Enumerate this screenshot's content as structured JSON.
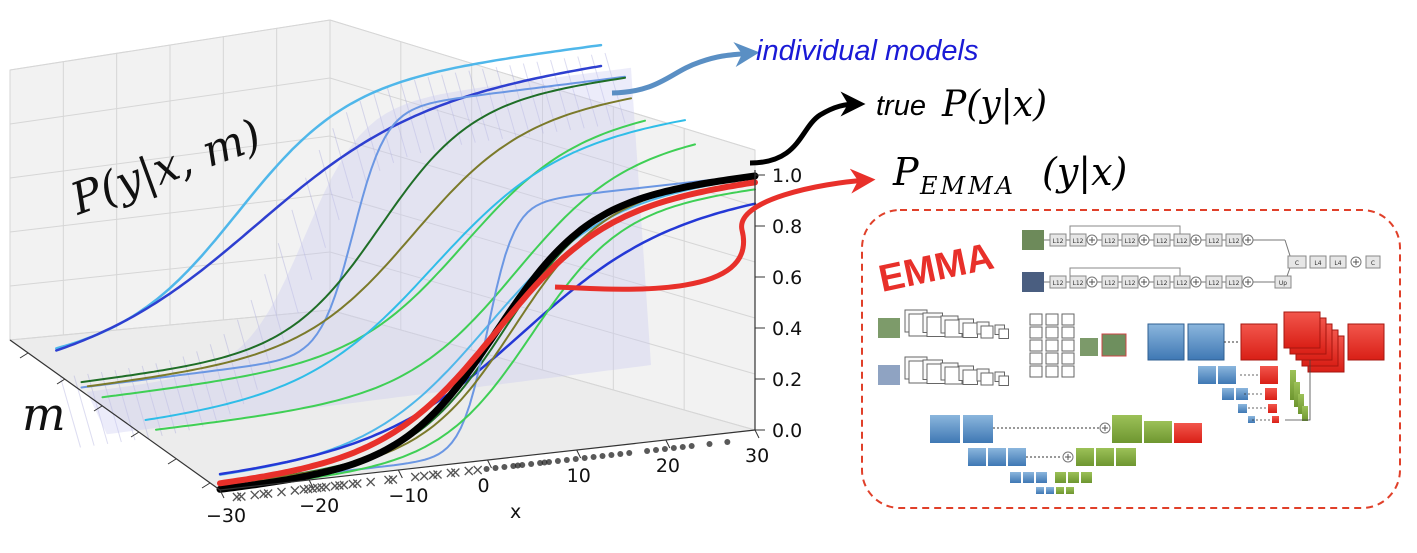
{
  "plot": {
    "z_label": "P(y|x, m)",
    "m_label": "m",
    "x_label": "x",
    "x_ticks": [
      "−30",
      "−20",
      "−10",
      "0",
      "10",
      "20",
      "30"
    ],
    "z_ticks": [
      "0.0",
      "0.2",
      "0.4",
      "0.6",
      "0.8",
      "1.0"
    ],
    "x_range": [
      -30,
      30
    ],
    "z_range": [
      0,
      1
    ],
    "grid": true
  },
  "annotations": {
    "individual_models": "individual models",
    "true_prefix": "true",
    "true_formula": "P(y|x)",
    "emma_formula_main": "P",
    "emma_formula_sub": "EMMA",
    "emma_formula_tail": "(y|x)"
  },
  "emma_panel": {
    "title": "EMMA",
    "block_labels": [
      "L12",
      "L12",
      "L12",
      "L12",
      "L12",
      "L12",
      "L12",
      "L12",
      "C",
      "L4",
      "L4",
      "C",
      "Up"
    ]
  },
  "colors": {
    "true_curve": "#000000",
    "emma_curve": "#e8302a",
    "individual_arrow": "#5a8fc4",
    "individual_text": "#1a1ad6",
    "panel_border": "#e0402a",
    "encoder_blue": "#4f87c0",
    "decoder_red": "#e8302a",
    "decoder_green": "#7fa63a"
  }
}
